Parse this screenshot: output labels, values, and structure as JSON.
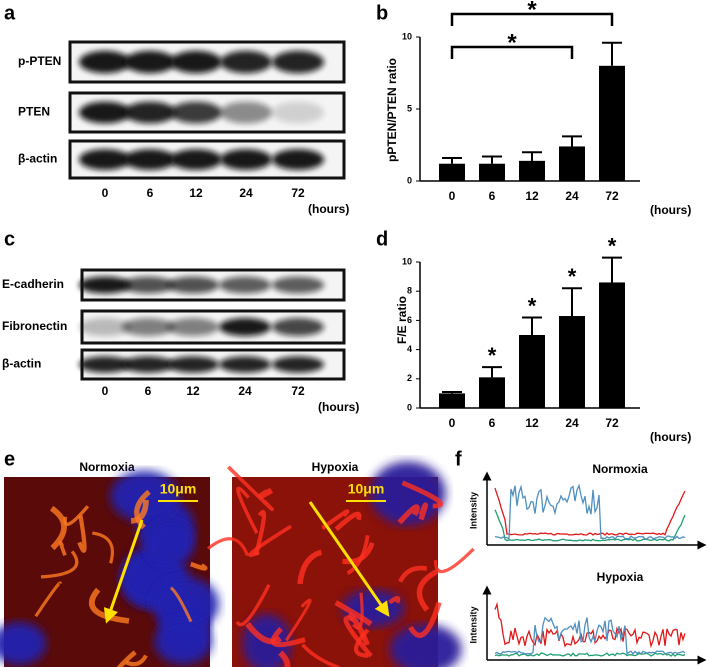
{
  "panels": {
    "a": {
      "label": "a",
      "rows": [
        "p-PTEN",
        "PTEN",
        "β-actin"
      ],
      "lanes": [
        "0",
        "6",
        "12",
        "24",
        "72"
      ],
      "unit": "(hours)"
    },
    "c": {
      "label": "c",
      "rows": [
        "E-cadherin",
        "Fibronectin",
        "β-actin"
      ],
      "lanes": [
        "0",
        "6",
        "12",
        "24",
        "72"
      ],
      "unit": "(hours)"
    },
    "e": {
      "label": "e",
      "images": [
        {
          "title": "Normoxia",
          "scale": "10μm"
        },
        {
          "title": "Hypoxia",
          "scale": "10μm"
        }
      ]
    },
    "f": {
      "label": "f",
      "plots": [
        {
          "title": "Normoxia",
          "ylabel": "Intensity"
        },
        {
          "title": "Hypoxia",
          "ylabel": "Intensity"
        }
      ]
    }
  },
  "chart_data": [
    {
      "type": "bar",
      "panel_label": "b",
      "ylabel": "pPTEN/PTEN ratio",
      "xlabel": "(hours)",
      "categories": [
        "0",
        "6",
        "12",
        "24",
        "72"
      ],
      "values": [
        1.2,
        1.2,
        1.4,
        2.4,
        8.0
      ],
      "errors": [
        0.4,
        0.5,
        0.6,
        0.7,
        1.6
      ],
      "color": "#000000",
      "ylim": [
        0,
        10
      ],
      "yticks": [
        0,
        5,
        10
      ],
      "annotations": [
        "*",
        "*"
      ]
    },
    {
      "type": "bar",
      "panel_label": "d",
      "ylabel": "F/E ratio",
      "xlabel": "(hours)",
      "categories": [
        "0",
        "6",
        "12",
        "24",
        "72"
      ],
      "values": [
        1.0,
        2.1,
        5.0,
        6.3,
        8.6
      ],
      "errors": [
        0.1,
        0.7,
        1.2,
        1.9,
        1.7
      ],
      "color": "#000000",
      "ylim": [
        0,
        10
      ],
      "yticks": [
        0,
        2,
        4,
        6,
        8,
        10
      ],
      "value_annotations": [
        null,
        "*",
        "*",
        "*",
        "*"
      ]
    }
  ]
}
